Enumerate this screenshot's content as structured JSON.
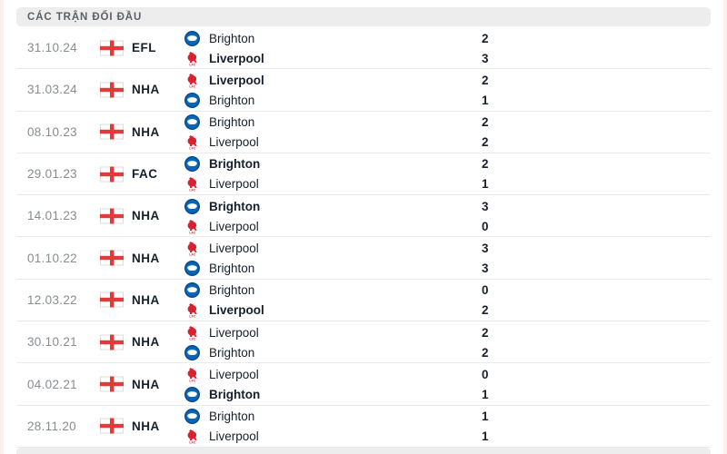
{
  "header": {
    "title": "CÁC TRẬN ĐỐI ĐẦU"
  },
  "icons": {
    "flag": "england-flag-icon",
    "Brighton": "brighton-crest-icon",
    "Liverpool": "liverpool-liver-bird-icon"
  },
  "colors": {
    "header_bg": "#ededed",
    "text_dark": "#16202c",
    "date_gray": "#888c92",
    "liverpool_red": "#d8222f",
    "brighton_blue": "#0a66b2",
    "flag_cross_red": "#e23a3a",
    "divider": "#eaeaea"
  },
  "matches": [
    {
      "date": "31.10.24",
      "competition": "EFL",
      "home": {
        "team": "Brighton",
        "score": "2",
        "winner": false
      },
      "away": {
        "team": "Liverpool",
        "score": "3",
        "winner": true
      }
    },
    {
      "date": "31.03.24",
      "competition": "NHA",
      "home": {
        "team": "Liverpool",
        "score": "2",
        "winner": true
      },
      "away": {
        "team": "Brighton",
        "score": "1",
        "winner": false
      }
    },
    {
      "date": "08.10.23",
      "competition": "NHA",
      "home": {
        "team": "Brighton",
        "score": "2",
        "winner": false
      },
      "away": {
        "team": "Liverpool",
        "score": "2",
        "winner": false
      }
    },
    {
      "date": "29.01.23",
      "competition": "FAC",
      "home": {
        "team": "Brighton",
        "score": "2",
        "winner": true
      },
      "away": {
        "team": "Liverpool",
        "score": "1",
        "winner": false
      }
    },
    {
      "date": "14.01.23",
      "competition": "NHA",
      "home": {
        "team": "Brighton",
        "score": "3",
        "winner": true
      },
      "away": {
        "team": "Liverpool",
        "score": "0",
        "winner": false
      }
    },
    {
      "date": "01.10.22",
      "competition": "NHA",
      "home": {
        "team": "Liverpool",
        "score": "3",
        "winner": false
      },
      "away": {
        "team": "Brighton",
        "score": "3",
        "winner": false
      }
    },
    {
      "date": "12.03.22",
      "competition": "NHA",
      "home": {
        "team": "Brighton",
        "score": "0",
        "winner": false
      },
      "away": {
        "team": "Liverpool",
        "score": "2",
        "winner": true
      }
    },
    {
      "date": "30.10.21",
      "competition": "NHA",
      "home": {
        "team": "Liverpool",
        "score": "2",
        "winner": false
      },
      "away": {
        "team": "Brighton",
        "score": "2",
        "winner": false
      }
    },
    {
      "date": "04.02.21",
      "competition": "NHA",
      "home": {
        "team": "Liverpool",
        "score": "0",
        "winner": false
      },
      "away": {
        "team": "Brighton",
        "score": "1",
        "winner": true
      }
    },
    {
      "date": "28.11.20",
      "competition": "NHA",
      "home": {
        "team": "Brighton",
        "score": "1",
        "winner": false
      },
      "away": {
        "team": "Liverpool",
        "score": "1",
        "winner": false
      }
    }
  ]
}
